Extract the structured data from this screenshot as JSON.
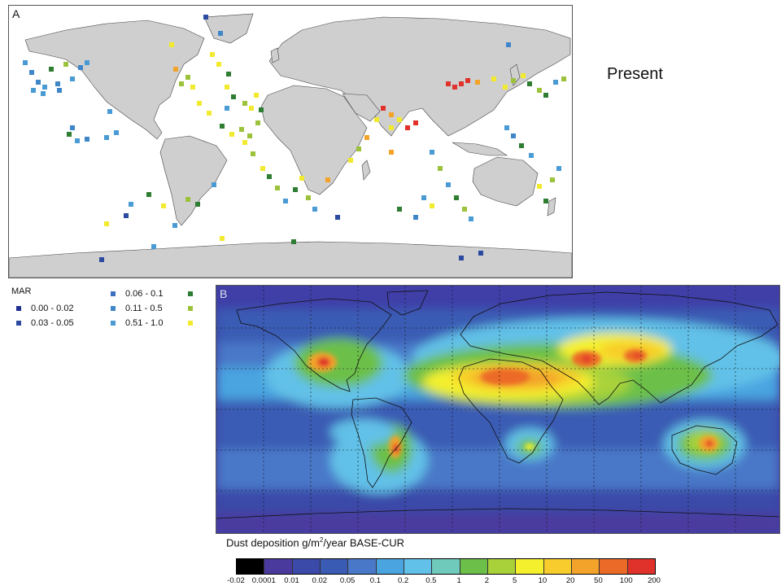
{
  "title_note": "Present",
  "panel_a": {
    "label": "A",
    "land_color": "#cfcfcf",
    "ocean_color": "#ffffff"
  },
  "legend_a": {
    "title": "MAR",
    "items": [
      {
        "label": "0.00 - 0.02",
        "color": "#1f2f8f"
      },
      {
        "label": "0.03 - 0.05",
        "color": "#2c4aa0"
      },
      {
        "label": "0.06 - 0.1",
        "color": "#3b6fc0"
      },
      {
        "label": "0.11 - 0.5",
        "color": "#3f86c9"
      },
      {
        "label": "0.51 - 1.0",
        "color": "#4a9ad4"
      }
    ],
    "extra_markers": [
      "#2e7d32",
      "#9cc23b",
      "#f2ea2e"
    ]
  },
  "panel_b": {
    "label": "B"
  },
  "colorbar": {
    "title_prefix": "Dust deposition g/m",
    "title_sup": "2",
    "title_suffix": "/year BASE-CUR",
    "ticks": [
      "-0.02",
      "0.0001",
      "0.01",
      "0.02",
      "0.05",
      "0.1",
      "0.2",
      "0.5",
      "1",
      "2",
      "5",
      "10",
      "20",
      "50",
      "100",
      "200"
    ],
    "colors": [
      "#000000",
      "#4b3a9e",
      "#3b4aa8",
      "#3a5bb4",
      "#4a78c8",
      "#4aa4e0",
      "#62c1e8",
      "#6fcabc",
      "#6cc04a",
      "#a9d23a",
      "#f4f02e",
      "#f8cc2c",
      "#f3a329",
      "#ec6a28",
      "#e0322a"
    ]
  }
}
